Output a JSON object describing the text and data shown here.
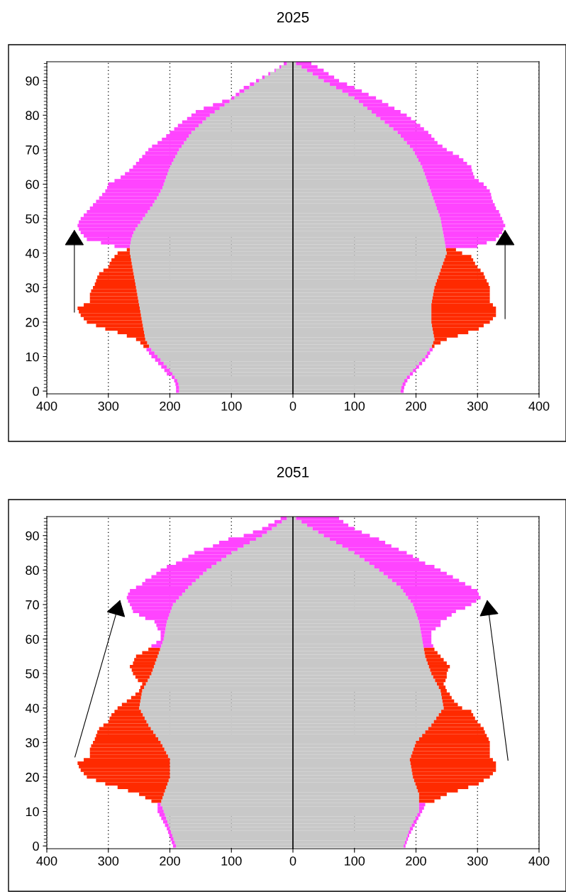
{
  "chart_data": [
    {
      "type": "bar",
      "orientation": "horizontal",
      "stacked": true,
      "title": "2025",
      "x": [
        0,
        1,
        2,
        3,
        4,
        5,
        6,
        7,
        8,
        9,
        10,
        11,
        12,
        13,
        14,
        15,
        16,
        17,
        18,
        19,
        20,
        21,
        22,
        23,
        24,
        25,
        26,
        27,
        28,
        29,
        30,
        31,
        32,
        33,
        34,
        35,
        36,
        37,
        38,
        39,
        40,
        41,
        42,
        43,
        44,
        45,
        46,
        47,
        48,
        49,
        50,
        51,
        52,
        53,
        54,
        55,
        56,
        57,
        58,
        59,
        60,
        61,
        62,
        63,
        64,
        65,
        66,
        67,
        68,
        69,
        70,
        71,
        72,
        73,
        74,
        75,
        76,
        77,
        78,
        79,
        80,
        81,
        82,
        83,
        84,
        85,
        86,
        87,
        88,
        89,
        90,
        91,
        92,
        93,
        94,
        95
      ],
      "xlim": [
        -400,
        400
      ],
      "xticks": [
        {
          "value": -400,
          "label": "400"
        },
        {
          "value": -300,
          "label": "300"
        },
        {
          "value": -200,
          "label": "200"
        },
        {
          "value": -100,
          "label": "100"
        },
        0,
        100,
        200,
        300,
        400
      ],
      "ylim": [
        -0.8,
        95.5
      ],
      "yticks": [
        0,
        10,
        20,
        30,
        40,
        50,
        60,
        70,
        80,
        90
      ],
      "grid": "x",
      "ref_lines": [
        {
          "axis": "x",
          "value": 0,
          "color": "#000000"
        }
      ],
      "series": [
        {
          "color": "#c8c8c8",
          "values": [
            -185,
            -185,
            -186,
            -188,
            -192,
            -196,
            -200,
            -205,
            -210,
            -215,
            -220,
            -225,
            -230,
            -234,
            -237,
            -240,
            -241,
            -242,
            -243,
            -244,
            -245,
            -246,
            -247,
            -248,
            -249,
            -250,
            -251,
            -252,
            -253,
            -254,
            -255,
            -256,
            -257,
            -258,
            -259,
            -260,
            -261,
            -262,
            -263,
            -264,
            -265,
            -265,
            -265,
            -264,
            -263,
            -261,
            -259,
            -256,
            -252,
            -248,
            -244,
            -240,
            -236,
            -232,
            -228,
            -225,
            -221,
            -218,
            -215,
            -212,
            -210,
            -208,
            -206,
            -204,
            -202,
            -200,
            -197,
            -194,
            -191,
            -188,
            -185,
            -181,
            -177,
            -173,
            -169,
            -165,
            -159,
            -153,
            -147,
            -141,
            -135,
            -127,
            -119,
            -111,
            -103,
            -95,
            -87,
            -79,
            -71,
            -63,
            -55,
            -46,
            -37,
            -28,
            -19,
            -10
          ]
        },
        {
          "color": "#ff2a00",
          "values": [
            null,
            null,
            null,
            null,
            null,
            null,
            null,
            null,
            null,
            null,
            null,
            null,
            null,
            -9,
            -11,
            -15,
            -29,
            -43,
            -62,
            -76,
            -90,
            -94,
            -98,
            -100,
            -101,
            -90,
            -79,
            -78,
            -77,
            -74,
            -70,
            -66,
            -63,
            -60,
            -56,
            -48,
            -39,
            -36,
            -32,
            -26,
            -20,
            -5,
            null,
            null,
            null,
            null,
            null,
            null,
            null,
            null,
            null,
            null,
            null,
            null,
            null,
            null,
            null,
            null,
            null,
            null,
            null,
            null,
            null,
            null,
            null,
            null,
            null,
            null,
            null,
            null,
            null,
            null,
            null,
            null,
            null,
            null,
            null,
            null,
            null,
            null,
            null,
            null,
            null,
            null,
            null,
            null,
            null,
            null,
            null,
            null,
            null,
            null,
            null,
            null,
            null,
            null
          ]
        },
        {
          "color": "#ff44ff",
          "values": [
            -5,
            -5,
            -5,
            -5,
            -5,
            -9,
            -9,
            -9,
            -9,
            -9,
            -10,
            -9,
            -8,
            null,
            null,
            null,
            null,
            null,
            null,
            null,
            null,
            null,
            null,
            null,
            null,
            null,
            null,
            null,
            null,
            null,
            null,
            null,
            null,
            null,
            null,
            null,
            null,
            null,
            null,
            null,
            null,
            null,
            -25,
            -48,
            -72,
            -79,
            -86,
            -92,
            -98,
            -100,
            -101,
            -100,
            -99,
            -98,
            -97,
            -95,
            -94,
            -92,
            -90,
            -90,
            -90,
            -82,
            -74,
            -69,
            -64,
            -60,
            -58,
            -56,
            -54,
            -52,
            -50,
            -48,
            -43,
            -40,
            -37,
            -35,
            -34,
            -34,
            -33,
            -31,
            -30,
            -31,
            -26,
            -19,
            -12,
            -5,
            -6,
            -8,
            -9,
            -7,
            -5,
            -4,
            -3,
            -2,
            -3,
            -5
          ]
        },
        {
          "color": "#c8c8c8",
          "values": [
            175,
            176,
            178,
            181,
            185,
            190,
            195,
            200,
            205,
            210,
            215,
            218,
            222,
            226,
            228,
            230,
            229,
            228,
            227,
            226,
            225,
            225,
            225,
            225,
            225,
            225,
            226,
            227,
            228,
            229,
            230,
            232,
            234,
            236,
            238,
            240,
            242,
            244,
            246,
            248,
            250,
            249,
            248,
            247,
            246,
            245,
            244,
            243,
            242,
            241,
            240,
            238,
            236,
            234,
            232,
            230,
            228,
            226,
            224,
            222,
            220,
            218,
            216,
            214,
            212,
            210,
            207,
            204,
            201,
            198,
            195,
            190,
            185,
            180,
            175,
            170,
            163,
            156,
            149,
            142,
            135,
            128,
            121,
            114,
            107,
            100,
            90,
            80,
            70,
            60,
            50,
            41,
            32,
            23,
            14,
            5
          ]
        },
        {
          "color": "#ff2a00",
          "values": [
            null,
            null,
            null,
            null,
            null,
            null,
            null,
            null,
            null,
            null,
            null,
            null,
            null,
            4,
            12,
            20,
            39,
            57,
            75,
            84,
            95,
            100,
            105,
            105,
            105,
            100,
            94,
            93,
            92,
            91,
            90,
            86,
            81,
            76,
            72,
            65,
            58,
            52,
            47,
            42,
            25,
            16,
            null,
            null,
            null,
            null,
            null,
            null,
            null,
            null,
            null,
            null,
            null,
            null,
            null,
            null,
            null,
            null,
            null,
            null,
            null,
            null,
            null,
            null,
            null,
            null,
            null,
            null,
            null,
            null,
            null,
            null,
            null,
            null,
            null,
            null,
            null,
            null,
            null,
            null,
            null,
            null,
            null,
            null,
            null,
            null,
            null,
            null,
            null,
            null,
            null,
            null,
            null,
            null,
            null,
            null
          ]
        },
        {
          "color": "#ff44ff",
          "values": [
            5,
            5,
            5,
            5,
            5,
            5,
            5,
            5,
            5,
            5,
            5,
            5,
            5,
            null,
            null,
            null,
            null,
            null,
            null,
            null,
            null,
            null,
            null,
            null,
            null,
            null,
            null,
            null,
            null,
            null,
            null,
            null,
            null,
            null,
            null,
            null,
            null,
            null,
            null,
            null,
            null,
            null,
            52,
            68,
            84,
            90,
            96,
            99,
            103,
            101,
            100,
            99,
            99,
            96,
            96,
            95,
            95,
            96,
            96,
            93,
            90,
            84,
            79,
            79,
            79,
            80,
            76,
            73,
            69,
            62,
            55,
            53,
            50,
            50,
            50,
            50,
            50,
            51,
            51,
            50,
            50,
            47,
            44,
            41,
            38,
            35,
            33,
            32,
            30,
            28,
            25,
            26,
            26,
            27,
            26,
            25
          ]
        }
      ]
    },
    {
      "type": "bar",
      "orientation": "horizontal",
      "stacked": true,
      "title": "2051",
      "x": [
        0,
        1,
        2,
        3,
        4,
        5,
        6,
        7,
        8,
        9,
        10,
        11,
        12,
        13,
        14,
        15,
        16,
        17,
        18,
        19,
        20,
        21,
        22,
        23,
        24,
        25,
        26,
        27,
        28,
        29,
        30,
        31,
        32,
        33,
        34,
        35,
        36,
        37,
        38,
        39,
        40,
        41,
        42,
        43,
        44,
        45,
        46,
        47,
        48,
        49,
        50,
        51,
        52,
        53,
        54,
        55,
        56,
        57,
        58,
        59,
        60,
        61,
        62,
        63,
        64,
        65,
        66,
        67,
        68,
        69,
        70,
        71,
        72,
        73,
        74,
        75,
        76,
        77,
        78,
        79,
        80,
        81,
        82,
        83,
        84,
        85,
        86,
        87,
        88,
        89,
        90,
        91,
        92,
        93,
        94,
        95
      ],
      "xlim": [
        -400,
        400
      ],
      "xticks": [
        {
          "value": -400,
          "label": "400"
        },
        {
          "value": -300,
          "label": "300"
        },
        {
          "value": -200,
          "label": "200"
        },
        {
          "value": -100,
          "label": "100"
        },
        0,
        100,
        200,
        300,
        400
      ],
      "ylim": [
        -0.8,
        95.5
      ],
      "yticks": [
        0,
        10,
        20,
        30,
        40,
        50,
        60,
        70,
        80,
        90
      ],
      "grid": "x",
      "ref_lines": [
        {
          "axis": "x",
          "value": 0,
          "color": "#000000"
        }
      ],
      "series": [
        {
          "color": "#c8c8c8",
          "values": [
            -190,
            -192,
            -194,
            -196,
            -198,
            -200,
            -202,
            -204,
            -206,
            -208,
            -210,
            -212,
            -215,
            -214,
            -212,
            -210,
            -208,
            -206,
            -204,
            -202,
            -200,
            -200,
            -200,
            -200,
            -200,
            -200,
            -203,
            -206,
            -209,
            -212,
            -215,
            -219,
            -223,
            -227,
            -231,
            -235,
            -238,
            -241,
            -244,
            -247,
            -250,
            -249,
            -248,
            -247,
            -246,
            -245,
            -242,
            -239,
            -236,
            -233,
            -230,
            -228,
            -226,
            -224,
            -222,
            -220,
            -218,
            -216,
            -214,
            -212,
            -210,
            -209,
            -208,
            -207,
            -206,
            -205,
            -203,
            -201,
            -199,
            -197,
            -195,
            -190,
            -185,
            -180,
            -175,
            -170,
            -164,
            -158,
            -152,
            -146,
            -140,
            -132,
            -124,
            -116,
            -108,
            -100,
            -90,
            -80,
            -70,
            -60,
            -50,
            -42,
            -34,
            -26,
            -18,
            -10
          ]
        },
        {
          "color": "#ff2a00",
          "values": [
            null,
            null,
            null,
            null,
            null,
            null,
            null,
            null,
            null,
            null,
            null,
            null,
            null,
            -16,
            -28,
            -40,
            -60,
            -79,
            -101,
            -118,
            -135,
            -140,
            -145,
            -148,
            -150,
            -140,
            -127,
            -124,
            -121,
            -116,
            -110,
            -103,
            -97,
            -91,
            -84,
            -73,
            -62,
            -57,
            -51,
            -43,
            -35,
            -29,
            -22,
            -16,
            -10,
            -5,
            -6,
            -6,
            -16,
            -23,
            -30,
            -34,
            -39,
            -36,
            -36,
            -35,
            -27,
            -19,
            null,
            null,
            null,
            null,
            null,
            null,
            null,
            null,
            null,
            null,
            null,
            null,
            null,
            null,
            null,
            null,
            null,
            null,
            null,
            null,
            null,
            null,
            null,
            null,
            null,
            null,
            null,
            null,
            null,
            null,
            null,
            null,
            null,
            null,
            null,
            null,
            null,
            null
          ]
        },
        {
          "color": "#ff44ff",
          "values": [
            -5,
            -5,
            -5,
            -5,
            -5,
            -5,
            -6,
            -7,
            -8,
            -9,
            -10,
            -8,
            -5,
            null,
            null,
            null,
            null,
            null,
            null,
            null,
            null,
            null,
            null,
            null,
            null,
            null,
            null,
            null,
            null,
            null,
            null,
            null,
            null,
            null,
            null,
            null,
            null,
            null,
            null,
            null,
            null,
            null,
            null,
            null,
            null,
            null,
            null,
            null,
            null,
            null,
            null,
            null,
            null,
            null,
            null,
            null,
            null,
            null,
            -16,
            -10,
            -5,
            -6,
            -7,
            -13,
            -16,
            -20,
            -37,
            -49,
            -61,
            -65,
            -70,
            -78,
            -85,
            -88,
            -90,
            -85,
            -81,
            -82,
            -78,
            -76,
            -75,
            -73,
            -66,
            -64,
            -62,
            -60,
            -55,
            -50,
            -50,
            -45,
            -30,
            -23,
            -16,
            -14,
            -12,
            -10
          ]
        },
        {
          "color": "#c8c8c8",
          "values": [
            180,
            182,
            184,
            186,
            188,
            190,
            193,
            196,
            199,
            202,
            205,
            205,
            205,
            205,
            205,
            205,
            203,
            201,
            199,
            197,
            195,
            194,
            193,
            192,
            191,
            190,
            192,
            194,
            196,
            198,
            200,
            205,
            210,
            215,
            220,
            225,
            229,
            233,
            237,
            241,
            245,
            244,
            243,
            242,
            241,
            240,
            237,
            234,
            231,
            228,
            225,
            223,
            221,
            219,
            217,
            215,
            214,
            213,
            212,
            211,
            210,
            209,
            208,
            207,
            206,
            205,
            203,
            201,
            199,
            197,
            195,
            191,
            187,
            183,
            179,
            175,
            168,
            161,
            154,
            147,
            140,
            132,
            124,
            116,
            108,
            100,
            90,
            80,
            70,
            60,
            50,
            41,
            32,
            23,
            14,
            5
          ]
        },
        {
          "color": "#ff2a00",
          "values": [
            null,
            null,
            null,
            null,
            null,
            null,
            null,
            null,
            null,
            null,
            null,
            null,
            null,
            25,
            35,
            45,
            65,
            84,
            103,
            113,
            125,
            131,
            137,
            138,
            139,
            135,
            128,
            126,
            124,
            122,
            120,
            113,
            105,
            97,
            90,
            80,
            71,
            63,
            56,
            49,
            30,
            24,
            19,
            16,
            14,
            10,
            11,
            11,
            17,
            22,
            25,
            29,
            34,
            31,
            28,
            25,
            21,
            17,
            null,
            null,
            null,
            null,
            null,
            null,
            null,
            null,
            null,
            null,
            null,
            null,
            null,
            null,
            null,
            null,
            null,
            null,
            null,
            null,
            null,
            null,
            null,
            null,
            null,
            null,
            null,
            null,
            null,
            null,
            null,
            null,
            null,
            null,
            null,
            null,
            null,
            null
          ]
        },
        {
          "color": "#ff44ff",
          "values": [
            3,
            3,
            3,
            3,
            4,
            5,
            5,
            5,
            5,
            5,
            5,
            8,
            10,
            null,
            null,
            null,
            null,
            null,
            null,
            null,
            null,
            null,
            null,
            null,
            null,
            null,
            null,
            null,
            null,
            null,
            null,
            null,
            null,
            null,
            null,
            null,
            null,
            null,
            null,
            null,
            null,
            null,
            null,
            null,
            null,
            null,
            null,
            null,
            null,
            null,
            null,
            null,
            null,
            null,
            null,
            null,
            null,
            null,
            16,
            14,
            15,
            16,
            17,
            25,
            34,
            35,
            47,
            57,
            66,
            83,
            95,
            107,
            118,
            119,
            121,
            115,
            112,
            109,
            106,
            103,
            100,
            98,
            91,
            89,
            87,
            85,
            82,
            80,
            80,
            80,
            75,
            71,
            68,
            67,
            68,
            70
          ]
        }
      ]
    }
  ]
}
